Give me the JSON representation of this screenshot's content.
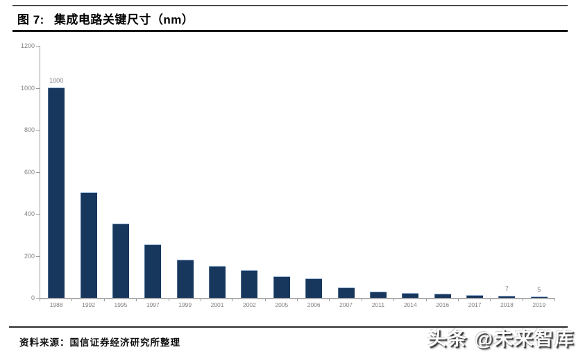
{
  "header": {
    "figure_label": "图 7:",
    "title": "集成电路关键尺寸（nm）"
  },
  "footer": {
    "source_label": "资料来源：",
    "source_text": "国信证券经济研究所整理"
  },
  "watermark": {
    "text": "头条 @未来智库"
  },
  "chart_data": {
    "type": "bar",
    "title": "集成电路关键尺寸（nm）",
    "xlabel": "",
    "ylabel": "",
    "categories": [
      "1988",
      "1992",
      "1995",
      "1997",
      "1999",
      "2001",
      "2002",
      "2005",
      "2006",
      "2007",
      "2011",
      "2014",
      "2016",
      "2017",
      "2018",
      "2019"
    ],
    "values": [
      1000,
      500,
      350,
      250,
      180,
      150,
      130,
      100,
      90,
      45,
      28,
      20,
      16,
      10,
      7,
      5
    ],
    "data_labels": {
      "1988": "1000",
      "2018": "7",
      "2019": "5"
    },
    "ylim": [
      0,
      1200
    ],
    "yticks": [
      0,
      200,
      400,
      600,
      800,
      1000,
      1200
    ],
    "grid": false,
    "legend": false,
    "colors": {
      "bar_fill": "#17375D",
      "bar_edge": "#95B3D7",
      "axis": "#9a9a9a",
      "tick_label": "#7f7f7f"
    }
  }
}
